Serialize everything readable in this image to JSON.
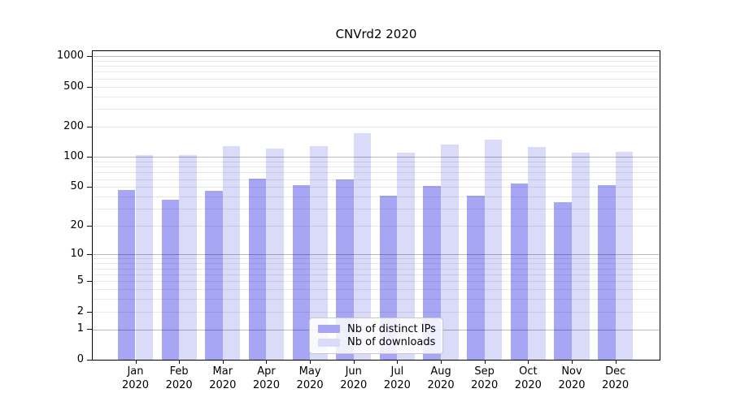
{
  "title": "CNVrd2 2020",
  "chart_data": {
    "type": "bar",
    "title": "CNVrd2 2020",
    "scale": "log1p",
    "ylim": [
      0,
      1120
    ],
    "y_ticks": [
      1000,
      500,
      200,
      100,
      50,
      20,
      10,
      5,
      2,
      1,
      0
    ],
    "grid": "horizontal",
    "grid_major": [
      1,
      10,
      100,
      1000
    ],
    "grid_minor": [
      2,
      3,
      4,
      5,
      6,
      7,
      8,
      9,
      20,
      30,
      40,
      50,
      60,
      70,
      80,
      90,
      200,
      300,
      400,
      500,
      600,
      700,
      800,
      900
    ],
    "months": [
      "Jan",
      "Feb",
      "Mar",
      "Apr",
      "May",
      "Jun",
      "Jul",
      "Aug",
      "Sep",
      "Oct",
      "Nov",
      "Dec"
    ],
    "year": "2020",
    "categories": [
      "Jan 2020",
      "Feb 2020",
      "Mar 2020",
      "Apr 2020",
      "May 2020",
      "Jun 2020",
      "Jul 2020",
      "Aug 2020",
      "Sep 2020",
      "Oct 2020",
      "Nov 2020",
      "Dec 2020"
    ],
    "series": [
      {
        "name": "Nb of distinct IPs",
        "color": "#a6a6f4",
        "values": [
          47,
          37,
          46,
          61,
          52,
          60,
          41,
          51,
          41,
          54,
          35,
          52
        ]
      },
      {
        "name": "Nb of downloads",
        "color": "#dadaf9",
        "values": [
          104,
          104,
          128,
          122,
          129,
          174,
          110,
          132,
          150,
          125,
          111,
          112
        ]
      }
    ],
    "legend_position": "inside-bottom-center",
    "colors": {
      "spine": "#000000",
      "background": "#ffffff",
      "grid_major": "#bbbbbb",
      "grid_minor": "#e9e9e9"
    }
  }
}
